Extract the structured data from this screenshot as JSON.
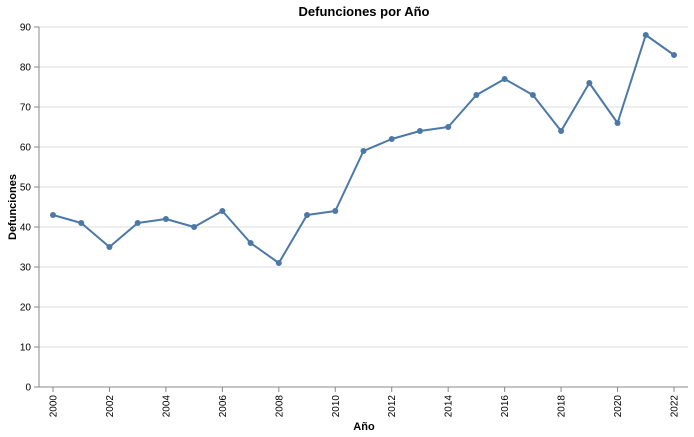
{
  "chart_data": {
    "type": "line",
    "title": "Defunciones por Año",
    "xlabel": "Año",
    "ylabel": "Defunciones",
    "x": [
      2000,
      2001,
      2002,
      2003,
      2004,
      2005,
      2006,
      2007,
      2008,
      2009,
      2010,
      2011,
      2012,
      2013,
      2014,
      2015,
      2016,
      2017,
      2018,
      2019,
      2020,
      2021,
      2022
    ],
    "series": [
      {
        "values": [
          43,
          41,
          35,
          41,
          42,
          40,
          44,
          36,
          31,
          43,
          44,
          59,
          62,
          64,
          65,
          73,
          77,
          73,
          64,
          76,
          66,
          88,
          83
        ]
      }
    ],
    "xticks": [
      "2000",
      "2002",
      "2004",
      "2006",
      "2008",
      "2010",
      "2012",
      "2014",
      "2016",
      "2018",
      "2020",
      "2022"
    ],
    "yticks": [
      "0",
      "10",
      "20",
      "30",
      "40",
      "50",
      "60",
      "70",
      "80",
      "90"
    ],
    "xlim": [
      2000,
      2022
    ],
    "ylim": [
      0,
      90
    ],
    "grid": true,
    "color": "#4c78a8"
  }
}
